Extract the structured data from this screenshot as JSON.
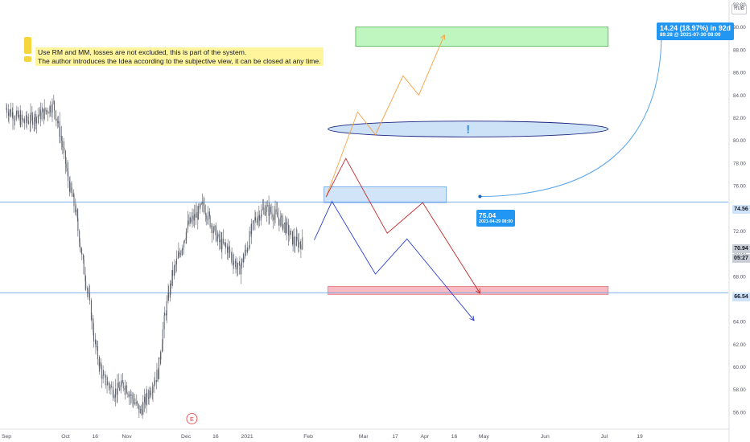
{
  "note": {
    "line1": "Use RM and MM, losses are not excluded, this is part of the system.",
    "line2": "The author introduces the Idea according to the subjective view, it can be closed at any time."
  },
  "currency": "RUB",
  "callouts": {
    "target": {
      "line1": "14.24 (18.97%) in 92d",
      "line2": "89.28 @ 2021-07-30 08:00"
    },
    "origin": {
      "line1": "75.04",
      "line2": "2021-04-29 08:00"
    }
  },
  "price_tags": {
    "upper_level": {
      "text": "74.56",
      "bg": "#cfe3fb",
      "fg": "#131722"
    },
    "last_price": {
      "text": "70.94",
      "bg": "#c9cdd6",
      "fg": "#131722"
    },
    "countdown": {
      "text": "05:27",
      "bg": "#c9cdd6",
      "fg": "#131722"
    },
    "lower_level": {
      "text": "66.54",
      "bg": "#cfe3fb",
      "fg": "#131722"
    }
  },
  "event_marker": "E",
  "alert_glyph": "!",
  "colors": {
    "candle": "#5b5f6b",
    "level_line": "#6aa3e8",
    "green_zone_fill": "#b8f5b8",
    "green_zone_border": "#4caf50",
    "blue_zone_fill": "#cde1f7",
    "red_zone_fill": "#f7b3bd",
    "red_zone_border": "#e57373",
    "ellipse_fill": "#cde1f7",
    "ellipse_border": "#1a237e",
    "orange_path": "#f9a03f",
    "red_path": "#c62828",
    "blue_path": "#2b3fd1",
    "callout_bg": "#2196f3",
    "axis_text": "#50535e",
    "event_marker": "#e53935"
  },
  "chart_data": {
    "type": "candlestick",
    "y_axis": {
      "min": 55,
      "max": 92,
      "ticks": [
        "56.00",
        "58.00",
        "60.00",
        "62.00",
        "64.00",
        "66.00",
        "68.00",
        "70.00",
        "72.00",
        "74.00",
        "76.00",
        "78.00",
        "80.00",
        "82.00",
        "84.00",
        "86.00",
        "88.00",
        "90.00",
        "92.00"
      ],
      "position": "right"
    },
    "x_axis": {
      "ticks": [
        {
          "label": "Sep",
          "date": "2020-09-01"
        },
        {
          "label": "Oct",
          "date": "2020-10-01"
        },
        {
          "label": "16",
          "date": "2020-10-16"
        },
        {
          "label": "Nov",
          "date": "2020-11-01"
        },
        {
          "label": "Dec",
          "date": "2020-12-01"
        },
        {
          "label": "16",
          "date": "2020-12-16"
        },
        {
          "label": "2021",
          "date": "2021-01-01"
        },
        {
          "label": "Feb",
          "date": "2021-02-01"
        },
        {
          "label": "Mar",
          "date": "2021-03-01"
        },
        {
          "label": "17",
          "date": "2021-03-17"
        },
        {
          "label": "Apr",
          "date": "2021-04-01"
        },
        {
          "label": "16",
          "date": "2021-04-16"
        },
        {
          "label": "May",
          "date": "2021-05-01"
        },
        {
          "label": "Jun",
          "date": "2021-06-01"
        },
        {
          "label": "Jul",
          "date": "2021-07-01"
        },
        {
          "label": "19",
          "date": "2021-07-19"
        }
      ]
    },
    "price_path": [
      {
        "date": "2020-09-01",
        "value": 82.8
      },
      {
        "date": "2020-09-10",
        "value": 81.6
      },
      {
        "date": "2020-09-20",
        "value": 82.4
      },
      {
        "date": "2020-09-25",
        "value": 83.2
      },
      {
        "date": "2020-09-29",
        "value": 80.0
      },
      {
        "date": "2020-10-03",
        "value": 76.0
      },
      {
        "date": "2020-10-06",
        "value": 74.0
      },
      {
        "date": "2020-10-10",
        "value": 69.0
      },
      {
        "date": "2020-10-13",
        "value": 66.0
      },
      {
        "date": "2020-10-16",
        "value": 62.0
      },
      {
        "date": "2020-10-20",
        "value": 59.0
      },
      {
        "date": "2020-10-26",
        "value": 57.8
      },
      {
        "date": "2020-10-31",
        "value": 58.5
      },
      {
        "date": "2020-11-03",
        "value": 57.5
      },
      {
        "date": "2020-11-08",
        "value": 56.0
      },
      {
        "date": "2020-11-13",
        "value": 58.0
      },
      {
        "date": "2020-11-17",
        "value": 59.5
      },
      {
        "date": "2020-11-20",
        "value": 64.0
      },
      {
        "date": "2020-11-24",
        "value": 68.0
      },
      {
        "date": "2020-11-28",
        "value": 70.0
      },
      {
        "date": "2020-12-02",
        "value": 72.5
      },
      {
        "date": "2020-12-07",
        "value": 73.5
      },
      {
        "date": "2020-12-10",
        "value": 74.3
      },
      {
        "date": "2020-12-13",
        "value": 73.0
      },
      {
        "date": "2020-12-18",
        "value": 71.0
      },
      {
        "date": "2020-12-22",
        "value": 70.5
      },
      {
        "date": "2020-12-25",
        "value": 69.5
      },
      {
        "date": "2020-12-28",
        "value": 68.5
      },
      {
        "date": "2021-01-01",
        "value": 70.5
      },
      {
        "date": "2021-01-05",
        "value": 73.0
      },
      {
        "date": "2021-01-10",
        "value": 74.0
      },
      {
        "date": "2021-01-15",
        "value": 73.5
      },
      {
        "date": "2021-01-20",
        "value": 72.5
      },
      {
        "date": "2021-01-25",
        "value": 71.0
      },
      {
        "date": "2021-01-29",
        "value": 70.94
      }
    ],
    "horizontal_levels": [
      74.56,
      66.54
    ],
    "zones": [
      {
        "name": "target-zone",
        "color": "green",
        "from": "2021-02-25",
        "to": "2021-07-03",
        "low": 88.3,
        "high": 90.0
      },
      {
        "name": "resistance-zone",
        "color": "blue",
        "from": "2021-02-09",
        "to": "2021-04-12",
        "low": 74.5,
        "high": 75.9
      },
      {
        "name": "support-zone",
        "color": "red",
        "from": "2021-02-11",
        "to": "2021-07-03",
        "low": 66.4,
        "high": 67.1
      }
    ],
    "ellipse": {
      "from": "2021-02-11",
      "to": "2021-07-03",
      "center": 81.0,
      "half_height": 0.7
    },
    "scenarios": [
      {
        "name": "bullish",
        "color": "orange",
        "points": [
          {
            "date": "2021-02-10",
            "value": 75.0
          },
          {
            "date": "2021-02-26",
            "value": 82.5
          },
          {
            "date": "2021-03-07",
            "value": 80.5
          },
          {
            "date": "2021-03-21",
            "value": 85.7
          },
          {
            "date": "2021-03-29",
            "value": 84.0
          },
          {
            "date": "2021-04-11",
            "value": 89.3
          }
        ]
      },
      {
        "name": "bearish-red",
        "color": "red",
        "points": [
          {
            "date": "2021-02-10",
            "value": 75.0
          },
          {
            "date": "2021-02-20",
            "value": 78.4
          },
          {
            "date": "2021-03-13",
            "value": 71.8
          },
          {
            "date": "2021-03-31",
            "value": 74.5
          },
          {
            "date": "2021-04-29",
            "value": 66.5
          }
        ]
      },
      {
        "name": "bearish-blue",
        "color": "blue",
        "points": [
          {
            "date": "2021-02-04",
            "value": 71.2
          },
          {
            "date": "2021-02-13",
            "value": 74.6
          },
          {
            "date": "2021-03-07",
            "value": 68.2
          },
          {
            "date": "2021-03-23",
            "value": 71.3
          },
          {
            "date": "2021-04-26",
            "value": 64.1
          }
        ]
      }
    ],
    "projection_curve": {
      "from": {
        "date": "2021-04-29",
        "value": 75.04
      },
      "to": {
        "date": "2021-07-30",
        "value": 89.28
      }
    },
    "event_date": "2020-12-04",
    "grid": false,
    "legend": "none"
  }
}
